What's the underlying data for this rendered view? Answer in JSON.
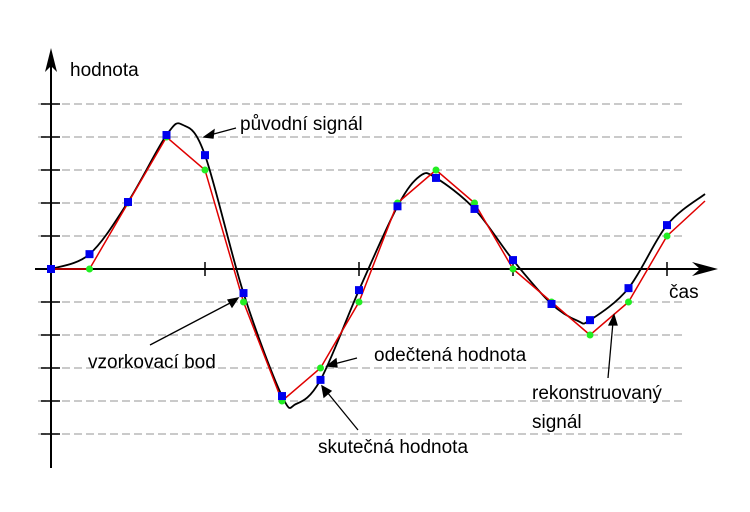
{
  "labels": {
    "y_axis": "hodnota",
    "x_axis": "čas",
    "original_signal": "původní signál",
    "sample_point": "vzorkovací bod",
    "read_value": "odečtená hodnota",
    "actual_value": "skutečná hodnota",
    "reconstructed_line1": "rekonstruovaný",
    "reconstructed_line2": "signál"
  },
  "samples": {
    "true_values": [
      0,
      0.45,
      2.03,
      4.06,
      3.45,
      -0.73,
      -3.85,
      -3.36,
      -0.64,
      1.9,
      2.76,
      1.82,
      0.27,
      -1.06,
      -1.55,
      -0.58,
      1.33
    ],
    "quantized_values": [
      0,
      0,
      2,
      4,
      3,
      -1,
      -4,
      -3,
      -1,
      2,
      3,
      2,
      0,
      -1,
      -2,
      -1,
      1
    ]
  },
  "quantization_levels": [
    -5,
    -4,
    -3,
    -2,
    -1,
    1,
    2,
    3,
    4,
    5
  ],
  "colors": {
    "original_signal": "#000000",
    "reconstructed_signal": "#e00000",
    "sample_point": "#0000ee",
    "read_value": "#22ee22",
    "grid": "#aaaaaa"
  }
}
